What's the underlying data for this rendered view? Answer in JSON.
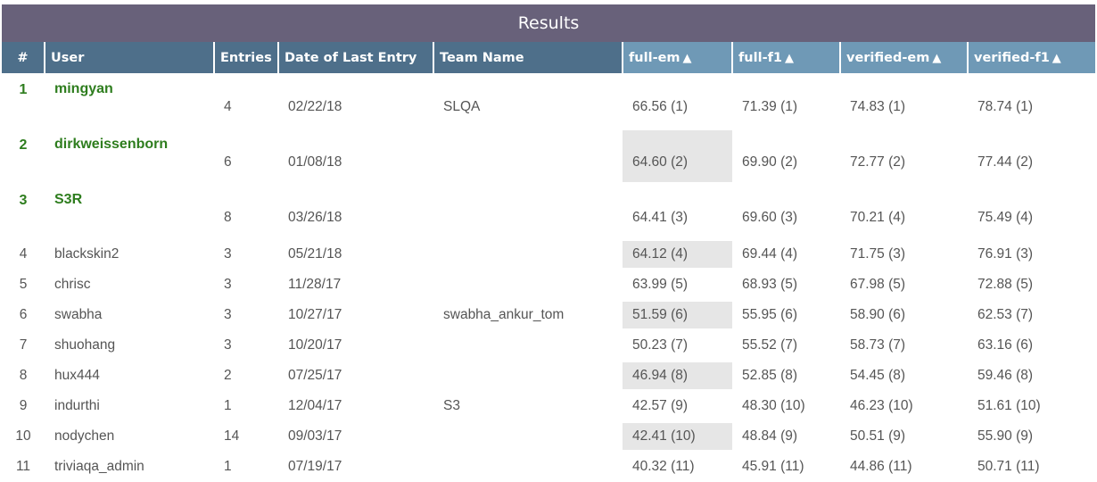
{
  "title": "Results",
  "columns": [
    {
      "label": "#",
      "sortable": false
    },
    {
      "label": "User",
      "sortable": false
    },
    {
      "label": "Entries",
      "sortable": false
    },
    {
      "label": "Date of Last Entry",
      "sortable": false
    },
    {
      "label": "Team Name",
      "sortable": false
    },
    {
      "label": "full-em",
      "sortable": true
    },
    {
      "label": "full-f1",
      "sortable": true
    },
    {
      "label": "verified-em",
      "sortable": true
    },
    {
      "label": "verified-f1",
      "sortable": true
    }
  ],
  "sort_arrow": "▲",
  "colors": {
    "title_bar": "#68617a",
    "header_dark": "#4e6f8a",
    "header_light": "#6f99b6",
    "winner_text": "#2e7d1e",
    "highlight_cell": "#e6e6e6"
  },
  "rows": [
    {
      "rank": "1",
      "user": "mingyan",
      "entries": "4",
      "date": "02/22/18",
      "team": "SLQA",
      "full_em": "66.56 (1)",
      "full_f1": "71.39 (1)",
      "verified_em": "74.83 (1)",
      "verified_f1": "78.74 (1)",
      "winner": true,
      "highlight": false
    },
    {
      "rank": "2",
      "user": "dirkweissenborn",
      "entries": "6",
      "date": "01/08/18",
      "team": "",
      "full_em": "64.60 (2)",
      "full_f1": "69.90 (2)",
      "verified_em": "72.77 (2)",
      "verified_f1": "77.44 (2)",
      "winner": true,
      "highlight": true
    },
    {
      "rank": "3",
      "user": "S3R",
      "entries": "8",
      "date": "03/26/18",
      "team": "",
      "full_em": "64.41 (3)",
      "full_f1": "69.60 (3)",
      "verified_em": "70.21 (4)",
      "verified_f1": "75.49 (4)",
      "winner": true,
      "highlight": false
    },
    {
      "rank": "4",
      "user": "blackskin2",
      "entries": "3",
      "date": "05/21/18",
      "team": "",
      "full_em": "64.12 (4)",
      "full_f1": "69.44 (4)",
      "verified_em": "71.75 (3)",
      "verified_f1": "76.91 (3)",
      "winner": false,
      "highlight": true
    },
    {
      "rank": "5",
      "user": "chrisc",
      "entries": "3",
      "date": "11/28/17",
      "team": "",
      "full_em": "63.99 (5)",
      "full_f1": "68.93 (5)",
      "verified_em": "67.98 (5)",
      "verified_f1": "72.88 (5)",
      "winner": false,
      "highlight": false
    },
    {
      "rank": "6",
      "user": "swabha",
      "entries": "3",
      "date": "10/27/17",
      "team": "swabha_ankur_tom",
      "full_em": "51.59 (6)",
      "full_f1": "55.95 (6)",
      "verified_em": "58.90 (6)",
      "verified_f1": "62.53 (7)",
      "winner": false,
      "highlight": true
    },
    {
      "rank": "7",
      "user": "shuohang",
      "entries": "3",
      "date": "10/20/17",
      "team": "",
      "full_em": "50.23 (7)",
      "full_f1": "55.52 (7)",
      "verified_em": "58.73 (7)",
      "verified_f1": "63.16 (6)",
      "winner": false,
      "highlight": false
    },
    {
      "rank": "8",
      "user": "hux444",
      "entries": "2",
      "date": "07/25/17",
      "team": "",
      "full_em": "46.94 (8)",
      "full_f1": "52.85 (8)",
      "verified_em": "54.45 (8)",
      "verified_f1": "59.46 (8)",
      "winner": false,
      "highlight": true
    },
    {
      "rank": "9",
      "user": "indurthi",
      "entries": "1",
      "date": "12/04/17",
      "team": "S3",
      "full_em": "42.57 (9)",
      "full_f1": "48.30 (10)",
      "verified_em": "46.23 (10)",
      "verified_f1": "51.61 (10)",
      "winner": false,
      "highlight": false
    },
    {
      "rank": "10",
      "user": "nodychen",
      "entries": "14",
      "date": "09/03/17",
      "team": "",
      "full_em": "42.41 (10)",
      "full_f1": "48.84 (9)",
      "verified_em": "50.51 (9)",
      "verified_f1": "55.90 (9)",
      "winner": false,
      "highlight": true
    },
    {
      "rank": "11",
      "user": "triviaqa_admin",
      "entries": "1",
      "date": "07/19/17",
      "team": "",
      "full_em": "40.32 (11)",
      "full_f1": "45.91 (11)",
      "verified_em": "44.86 (11)",
      "verified_f1": "50.71 (11)",
      "winner": false,
      "highlight": false
    }
  ]
}
